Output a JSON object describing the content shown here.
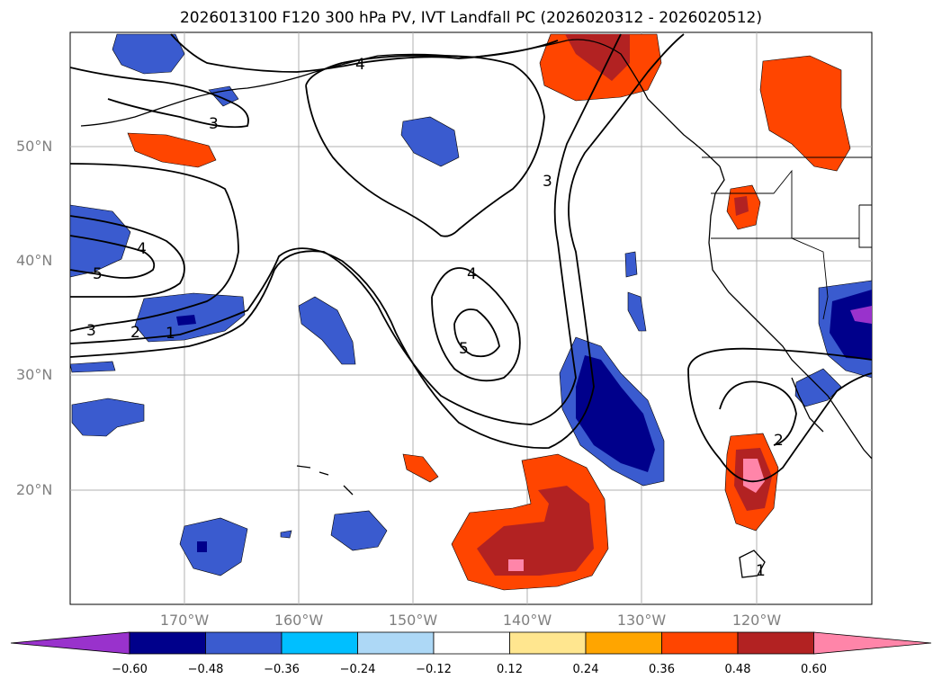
{
  "title": "2026013100 F120 300 hPa PV, IVT Landfall PC (2026020312 - 2026020512)",
  "lat_labels": [
    "50°N",
    "40°N",
    "30°N",
    "20°N"
  ],
  "lon_labels": [
    "170°W",
    "160°W",
    "150°W",
    "140°W",
    "130°W",
    "120°W"
  ],
  "colorbar": {
    "ticks": [
      "−0.60",
      "−0.48",
      "−0.36",
      "−0.24",
      "−0.12",
      "0.12",
      "0.24",
      "0.36",
      "0.48",
      "0.60"
    ],
    "colors": [
      "#9932cc",
      "#00008b",
      "#3a5bcf",
      "#00bfff",
      "#add8f6",
      "#ffffff",
      "#ffe68f",
      "#ffa500",
      "#ff4500",
      "#b22222",
      "#ff85a9"
    ]
  },
  "contour_labels": [
    "4",
    "3",
    "4",
    "5",
    "3",
    "2",
    "1",
    "3",
    "4",
    "5",
    "2",
    "1"
  ],
  "colors": {
    "ocean": "#ffffff",
    "contour": "#000000",
    "grid": "#b0b0b0",
    "axis_label": "#808080"
  }
}
